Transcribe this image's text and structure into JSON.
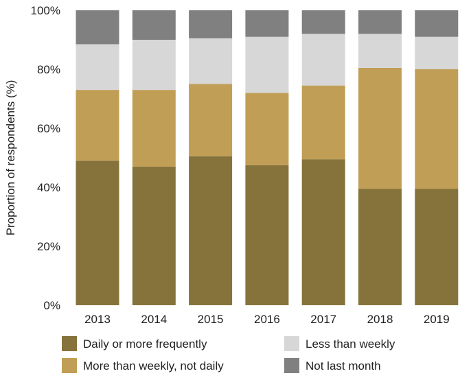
{
  "chart_data": {
    "type": "bar",
    "stacked": true,
    "categories": [
      "2013",
      "2014",
      "2015",
      "2016",
      "2017",
      "2018",
      "2019"
    ],
    "series": [
      {
        "name": "Daily or more frequently",
        "color": "#86733b",
        "values": [
          49,
          47,
          50.5,
          47.5,
          49.5,
          39.5,
          39.5
        ]
      },
      {
        "name": "More than weekly, not daily",
        "color": "#c19e55",
        "values": [
          24,
          26,
          24.5,
          24.5,
          25,
          41,
          40.5
        ]
      },
      {
        "name": "Less than weekly",
        "color": "#d7d7d7",
        "values": [
          15.5,
          17,
          15.5,
          19,
          17.5,
          11.5,
          11
        ]
      },
      {
        "name": "Not last month",
        "color": "#808080",
        "values": [
          11.5,
          10,
          9.5,
          9,
          8,
          8,
          9
        ]
      }
    ],
    "ylabel": "Proportion of respondents (%)",
    "ylim": [
      0,
      100
    ],
    "yticks": [
      "0%",
      "20%",
      "40%",
      "60%",
      "80%",
      "100%"
    ],
    "grid": false,
    "legend_position": "bottom"
  }
}
